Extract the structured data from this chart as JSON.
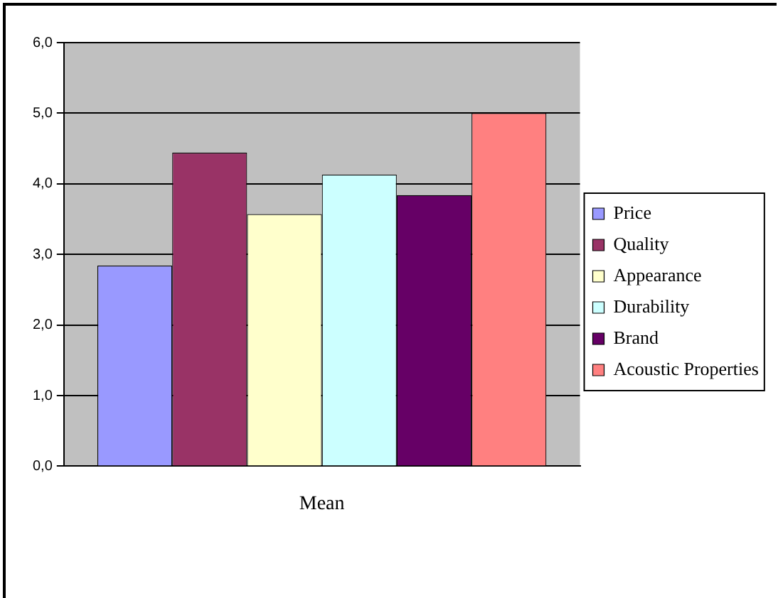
{
  "chart_data": {
    "type": "bar",
    "categories": [
      "Mean"
    ],
    "series": [
      {
        "name": "Price",
        "color": "#9999ff",
        "values": [
          2.84
        ]
      },
      {
        "name": "Quality",
        "color": "#993366",
        "values": [
          4.44
        ]
      },
      {
        "name": "Appearance",
        "color": "#ffffcc",
        "values": [
          3.57
        ]
      },
      {
        "name": "Durability",
        "color": "#ccffff",
        "values": [
          4.13
        ]
      },
      {
        "name": "Brand",
        "color": "#660066",
        "values": [
          3.84
        ]
      },
      {
        "name": "Acoustic Properties",
        "color": "#ff8080",
        "values": [
          5.0
        ]
      }
    ],
    "ylim": [
      0,
      6
    ],
    "yticks": [
      {
        "value": 0,
        "label": "0,0"
      },
      {
        "value": 1,
        "label": "1,0"
      },
      {
        "value": 2,
        "label": "2,0"
      },
      {
        "value": 3,
        "label": "3,0"
      },
      {
        "value": 4,
        "label": "4,0"
      },
      {
        "value": 5,
        "label": "5,0"
      },
      {
        "value": 6,
        "label": "6,0"
      }
    ],
    "grid": "y",
    "legend": "right"
  }
}
